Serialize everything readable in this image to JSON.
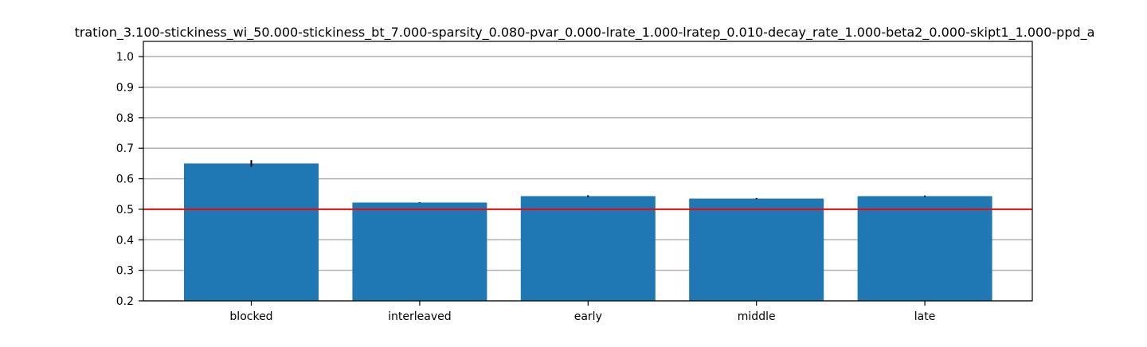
{
  "chart_data": {
    "type": "bar",
    "title": "tration_3.100-stickiness_wi_50.000-stickiness_bt_7.000-sparsity_0.080-pvar_0.000-lrate_1.000-lratep_0.010-decay_rate_1.000-beta2_0.000-skipt1_1.000-ppd_a",
    "xlabel": "",
    "ylabel": "",
    "categories": [
      "blocked",
      "interleaved",
      "early",
      "middle",
      "late"
    ],
    "values": [
      0.65,
      0.522,
      0.543,
      0.535,
      0.543
    ],
    "errors": [
      0.011,
      0.001,
      0.003,
      0.002,
      0.002
    ],
    "ylim": [
      0.2,
      1.05
    ],
    "yticks": [
      0.2,
      0.3,
      0.4,
      0.5,
      0.6,
      0.7,
      0.8,
      0.9,
      1.0
    ],
    "ytick_labels": [
      "0.2",
      "0.3",
      "0.4",
      "0.5",
      "0.6",
      "0.7",
      "0.8",
      "0.9",
      "1.0"
    ],
    "reference_line": {
      "y": 0.5,
      "color": "#ff0000"
    },
    "bar_color": "#1f77b4",
    "error_color": "#000000",
    "grid": "horizontal",
    "grid_color": "#b0b0b0",
    "legend": "none"
  }
}
